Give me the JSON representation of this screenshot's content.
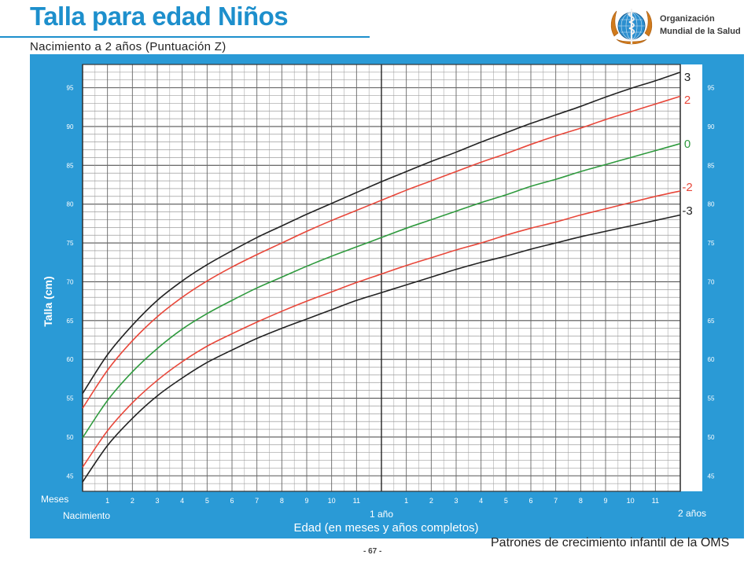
{
  "header": {
    "title": "Talla para edad Niños",
    "subtitle": "Nacimiento a 2 años (Puntuación Z)"
  },
  "organization": {
    "name_line1": "Organización",
    "name_line2": "Mundial de la Salud",
    "logo_icon": "who-emblem-icon"
  },
  "footer": {
    "text": "Patrones de crecimiento infantil de la OMS",
    "page": "- 67 -"
  },
  "colors": {
    "panel": "#2a9ad6",
    "z3": "#222222",
    "z2": "#e8473a",
    "z0": "#2f9a3e",
    "title": "#1d8fcc"
  },
  "chart_data": {
    "type": "line",
    "ylabel": "Talla (cm)",
    "xlabel": "Edad (en meses y años completos)",
    "ylim": [
      43,
      98
    ],
    "xlim": [
      0,
      24
    ],
    "y_ticks": [
      45,
      50,
      55,
      60,
      65,
      70,
      75,
      80,
      85,
      90,
      95
    ],
    "x_ticks": [
      {
        "month": 1,
        "label": "1"
      },
      {
        "month": 2,
        "label": "2"
      },
      {
        "month": 3,
        "label": "3"
      },
      {
        "month": 4,
        "label": "4"
      },
      {
        "month": 5,
        "label": "5"
      },
      {
        "month": 6,
        "label": "6"
      },
      {
        "month": 7,
        "label": "7"
      },
      {
        "month": 8,
        "label": "8"
      },
      {
        "month": 9,
        "label": "9"
      },
      {
        "month": 10,
        "label": "10"
      },
      {
        "month": 11,
        "label": "11"
      },
      {
        "month": 13,
        "label": "1"
      },
      {
        "month": 14,
        "label": "2"
      },
      {
        "month": 15,
        "label": "3"
      },
      {
        "month": 16,
        "label": "4"
      },
      {
        "month": 17,
        "label": "5"
      },
      {
        "month": 18,
        "label": "6"
      },
      {
        "month": 19,
        "label": "7"
      },
      {
        "month": 20,
        "label": "8"
      },
      {
        "month": 21,
        "label": "9"
      },
      {
        "month": 22,
        "label": "10"
      },
      {
        "month": 23,
        "label": "11"
      }
    ],
    "x_major_labels": [
      {
        "month": 0,
        "label": "Nacimiento"
      },
      {
        "month": 12,
        "label": "1 año"
      },
      {
        "month": 24,
        "label": "2 años"
      }
    ],
    "meses_label": "Meses",
    "x": [
      0,
      1,
      2,
      3,
      4,
      5,
      6,
      7,
      8,
      9,
      10,
      11,
      12,
      13,
      14,
      15,
      16,
      17,
      18,
      19,
      20,
      21,
      22,
      23,
      24
    ],
    "series": [
      {
        "name": "3",
        "color": "#222222",
        "values": [
          55.6,
          60.6,
          64.4,
          67.6,
          70.1,
          72.2,
          74.0,
          75.7,
          77.2,
          78.7,
          80.1,
          81.5,
          82.9,
          84.2,
          85.5,
          86.7,
          88.0,
          89.2,
          90.4,
          91.5,
          92.6,
          93.8,
          94.9,
          95.9,
          97.0
        ]
      },
      {
        "name": "2",
        "color": "#e8473a",
        "values": [
          53.7,
          58.6,
          62.4,
          65.5,
          68.0,
          70.1,
          71.9,
          73.5,
          75.0,
          76.5,
          77.9,
          79.2,
          80.5,
          81.8,
          83.0,
          84.2,
          85.4,
          86.5,
          87.7,
          88.8,
          89.8,
          90.9,
          91.9,
          92.9,
          93.9
        ]
      },
      {
        "name": "0",
        "color": "#2f9a3e",
        "values": [
          49.9,
          54.7,
          58.4,
          61.4,
          63.9,
          65.9,
          67.6,
          69.2,
          70.6,
          72.0,
          73.3,
          74.5,
          75.7,
          76.9,
          78.0,
          79.1,
          80.2,
          81.2,
          82.3,
          83.2,
          84.2,
          85.1,
          86.0,
          86.9,
          87.8
        ]
      },
      {
        "name": "-2",
        "color": "#e8473a",
        "values": [
          46.1,
          50.8,
          54.4,
          57.3,
          59.7,
          61.7,
          63.3,
          64.8,
          66.2,
          67.5,
          68.7,
          69.9,
          71.0,
          72.1,
          73.1,
          74.1,
          75.0,
          76.0,
          76.9,
          77.7,
          78.6,
          79.4,
          80.2,
          81.0,
          81.7
        ]
      },
      {
        "name": "-3",
        "color": "#222222",
        "values": [
          44.2,
          48.9,
          52.4,
          55.3,
          57.6,
          59.6,
          61.2,
          62.7,
          64.0,
          65.2,
          66.4,
          67.6,
          68.6,
          69.6,
          70.6,
          71.6,
          72.5,
          73.3,
          74.2,
          75.0,
          75.8,
          76.5,
          77.2,
          77.9,
          78.6
        ]
      }
    ],
    "grid": true
  }
}
